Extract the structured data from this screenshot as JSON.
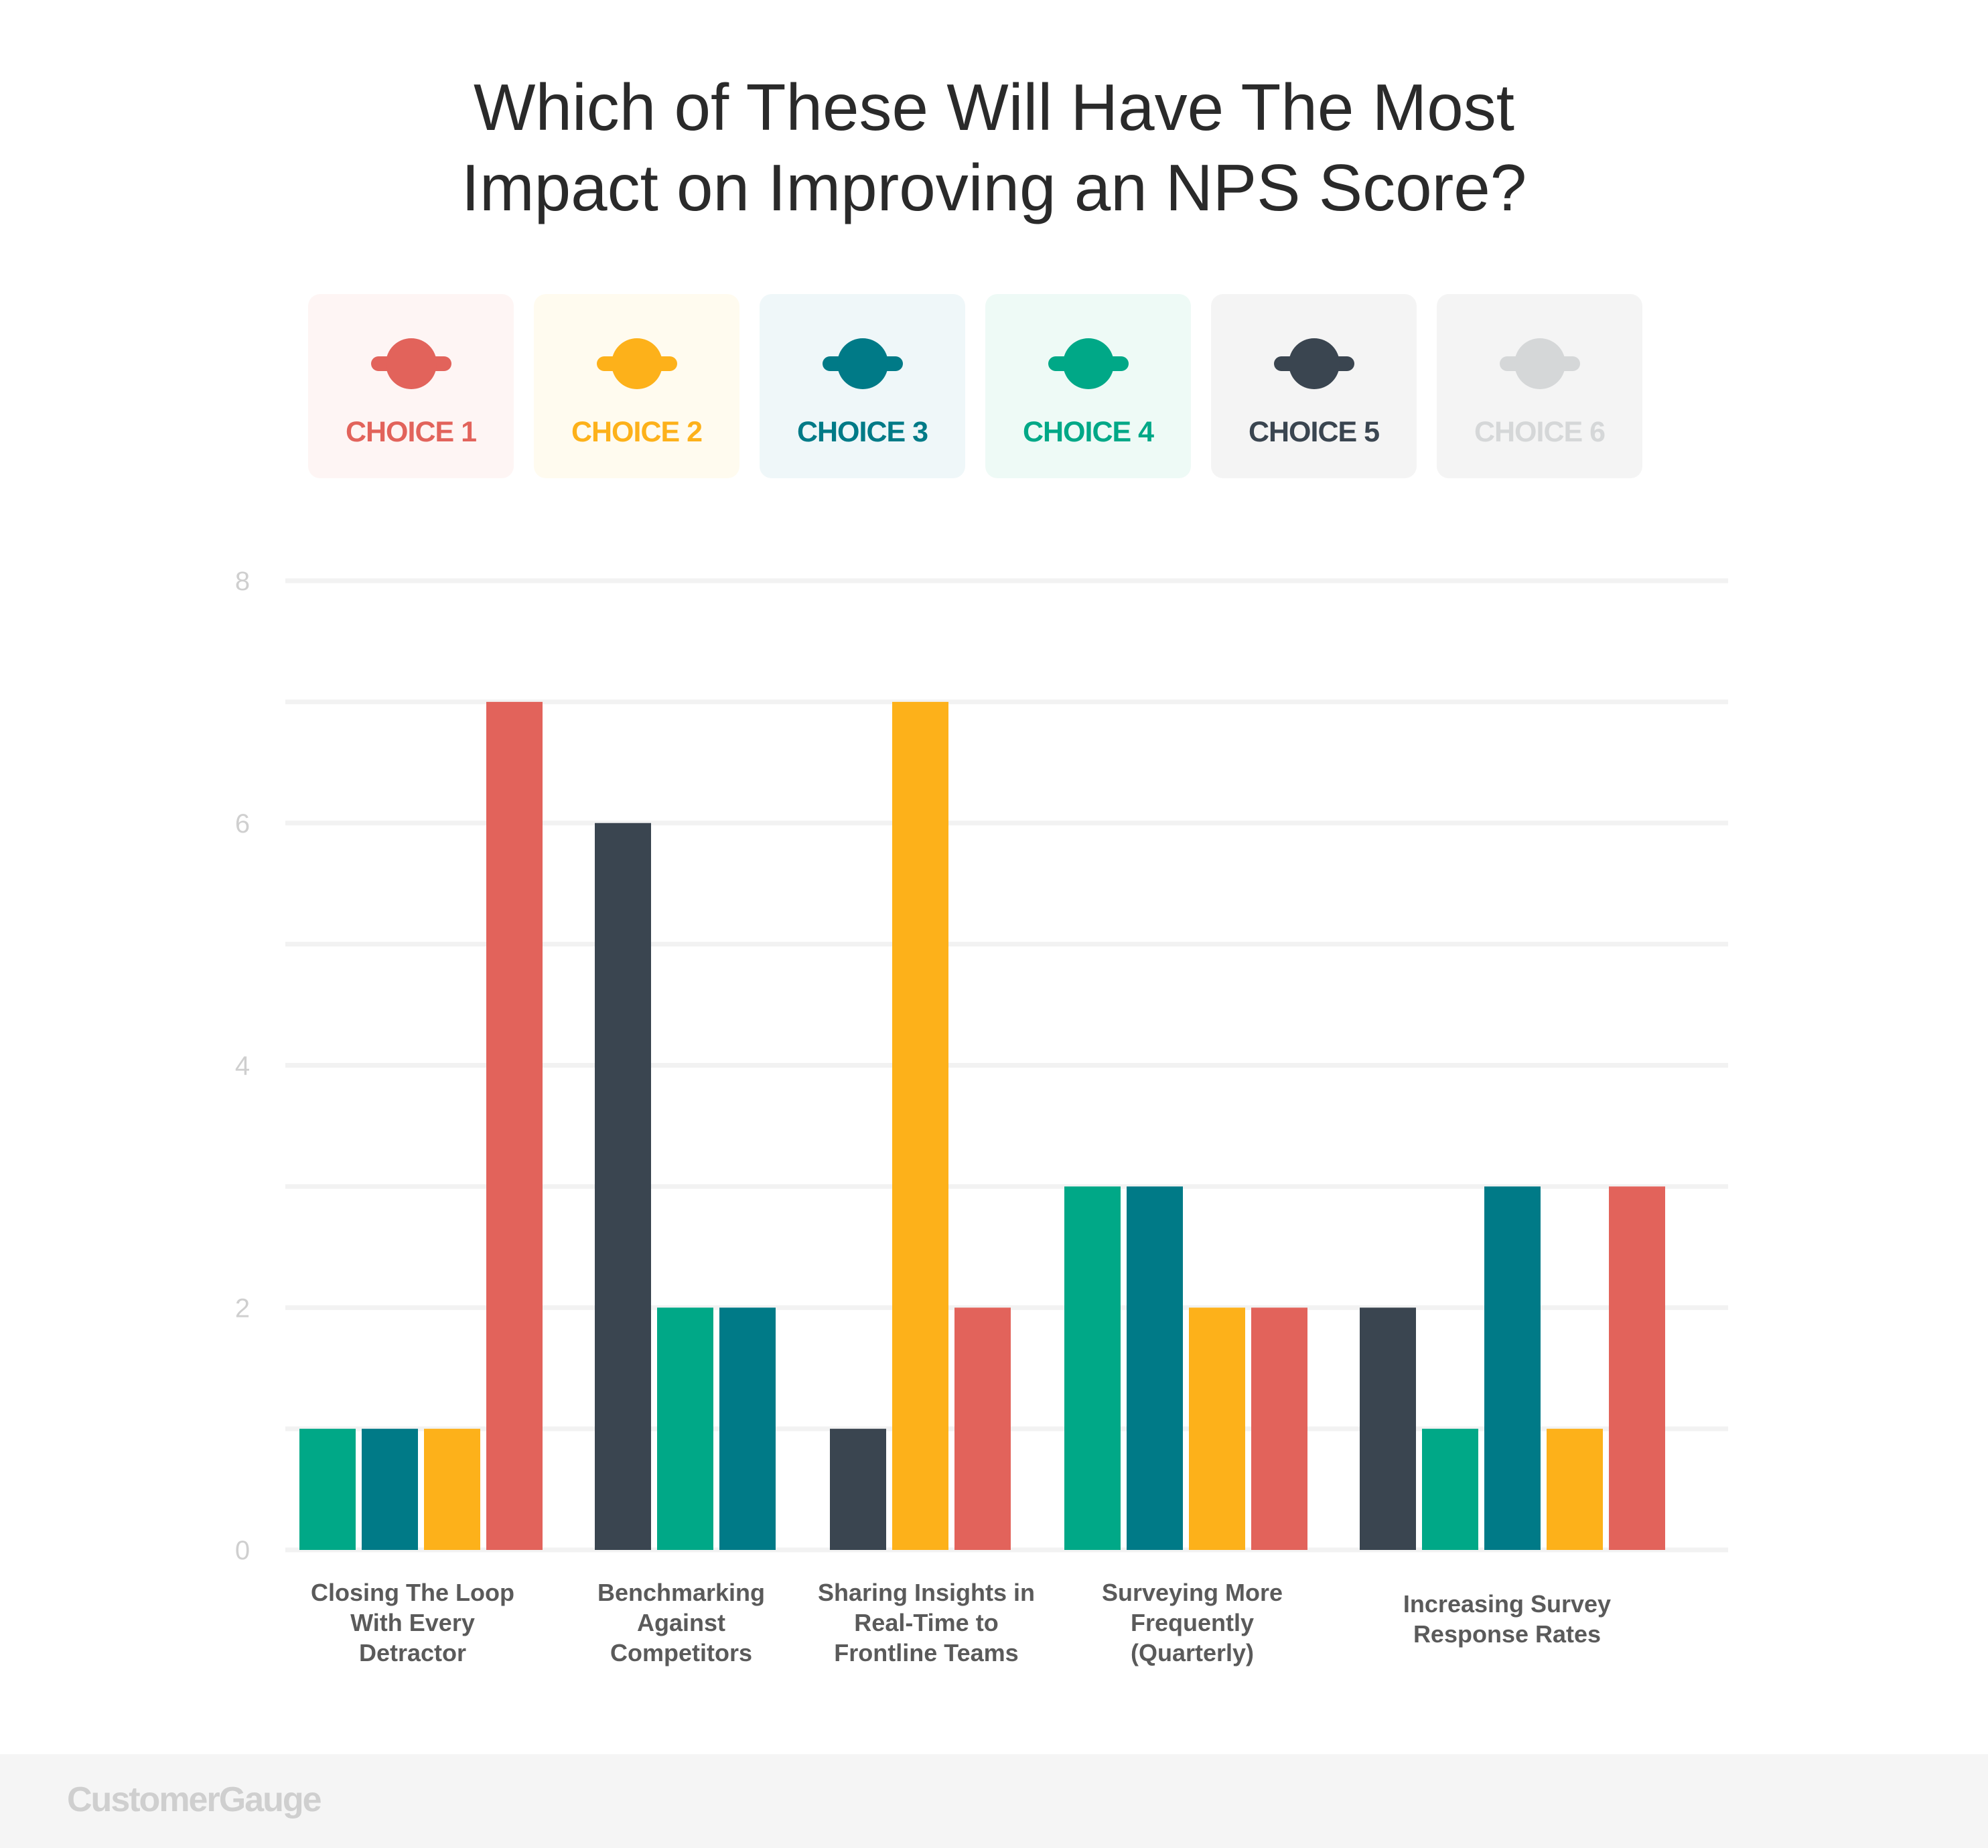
{
  "chart_data": {
    "type": "bar",
    "title": [
      "Which of These Will Have The Most",
      "Impact on Improving an NPS Score?"
    ],
    "categories": [
      [
        "Closing The Loop",
        "With Every",
        "Detractor"
      ],
      [
        "Benchmarking",
        "Against",
        "Competitors"
      ],
      [
        "Sharing Insights in",
        "Real-Time to",
        "Frontline Teams"
      ],
      [
        "Surveying More",
        "Frequently",
        "(Quarterly)"
      ],
      [
        "Increasing Survey",
        "Response Rates"
      ]
    ],
    "series": [
      {
        "name": "CHOICE 5",
        "color": "#3a4550",
        "values": [
          null,
          6,
          1,
          null,
          2
        ]
      },
      {
        "name": "CHOICE 4",
        "color": "#00a887",
        "values": [
          1,
          2,
          null,
          3,
          1
        ]
      },
      {
        "name": "CHOICE 3",
        "color": "#007a87",
        "values": [
          1,
          2,
          null,
          3,
          3
        ]
      },
      {
        "name": "CHOICE 2",
        "color": "#fdb11a",
        "values": [
          1,
          null,
          7,
          2,
          1
        ]
      },
      {
        "name": "CHOICE 1",
        "color": "#e2635b",
        "values": [
          7,
          null,
          2,
          2,
          3
        ]
      }
    ],
    "legend": [
      {
        "label": "CHOICE 1",
        "color": "#e2635b",
        "bg": "#fef5f4"
      },
      {
        "label": "CHOICE 2",
        "color": "#fdb11a",
        "bg": "#fffbef"
      },
      {
        "label": "CHOICE 3",
        "color": "#007a87",
        "bg": "#eff7f9"
      },
      {
        "label": "CHOICE 4",
        "color": "#00a887",
        "bg": "#eefaf6"
      },
      {
        "label": "CHOICE 5",
        "color": "#3a4550",
        "bg": "#f4f4f4"
      },
      {
        "label": "CHOICE 6",
        "color": "#d5d7d8",
        "bg": "#f4f4f4"
      }
    ],
    "legend_placement": "top",
    "ylim": [
      0,
      8
    ],
    "yticks": [
      "0",
      "2",
      "4",
      "6",
      "8"
    ],
    "grid": true,
    "xlabel": "",
    "ylabel": ""
  },
  "footer": {
    "logo": "CustomerGauge"
  }
}
